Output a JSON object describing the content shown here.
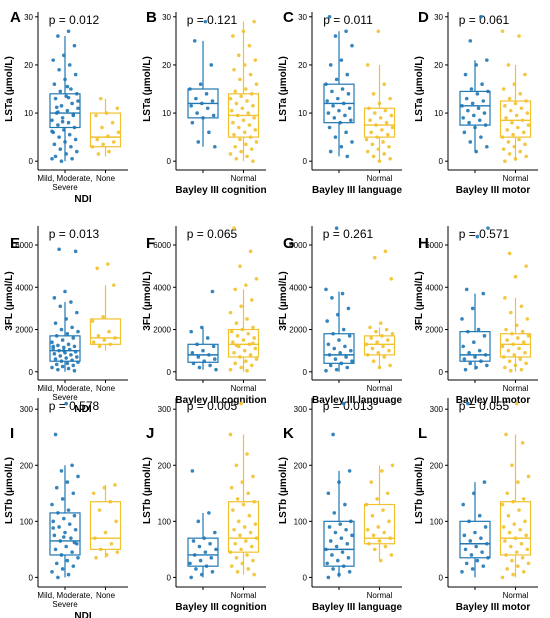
{
  "colors": {
    "impaired": "#1f77b4",
    "normal": "#f2c12e",
    "axis": "#000000"
  },
  "chart_data": [
    {
      "type": "box",
      "panel_label": "A",
      "ylabel": "LSTa (µmol/L)",
      "xlabel": "NDI",
      "p_text": "p = 0.012",
      "categories": [
        "Mild, Moderate,\nSevere",
        "None"
      ],
      "ylim": [
        -1,
        31
      ],
      "yticks": [
        0,
        10,
        20,
        30
      ],
      "boxes": [
        {
          "q1": 7,
          "median": 10,
          "q3": 14,
          "whisker_low": 0,
          "whisker_high": 26
        },
        {
          "q1": 3,
          "median": 5,
          "q3": 10,
          "whisker_low": 1,
          "whisker_high": 13
        }
      ],
      "points": [
        [
          0.5,
          27,
          26,
          24,
          22,
          21,
          20,
          19,
          18,
          17,
          16,
          15,
          14.5,
          14,
          13.5,
          13,
          12,
          11.5,
          11,
          10.5,
          10,
          9.5,
          9,
          8.5,
          8,
          7.5,
          7,
          6.5,
          6,
          5.5,
          5,
          4.5,
          4,
          3.5,
          3,
          2.5,
          2,
          1.5,
          1,
          0.5,
          0,
          12.5,
          15.5,
          11.2,
          9.8,
          8.2,
          6.2,
          13.2,
          10.2
        ],
        [
          13,
          11,
          10,
          9.5,
          8,
          7,
          6,
          5.2,
          4.5,
          4,
          3.5,
          3,
          2,
          1.5
        ]
      ]
    },
    {
      "type": "box",
      "panel_label": "B",
      "ylabel": "LSTa (µmol/L)",
      "xlabel": "Bayley III cognition",
      "p_text": "p = 0.121",
      "categories": [
        "",
        "Normal"
      ],
      "ylim": [
        -1,
        31
      ],
      "yticks": [
        0,
        10,
        20,
        30
      ],
      "boxes": [
        {
          "q1": 9,
          "median": 12,
          "q3": 15,
          "whisker_low": 3,
          "whisker_high": 25
        },
        {
          "q1": 5,
          "median": 9.5,
          "q3": 14,
          "whisker_low": 0,
          "whisker_high": 29
        }
      ],
      "points": [
        [
          29,
          25,
          20,
          16,
          15,
          14,
          13,
          12.5,
          12,
          11.5,
          11,
          10,
          9.5,
          9,
          8,
          6,
          4,
          3
        ],
        [
          29,
          27,
          26,
          24,
          22,
          21,
          20,
          19,
          18,
          17,
          16,
          15,
          14.5,
          14,
          13.5,
          13,
          12.5,
          12,
          11.5,
          11,
          10.5,
          10,
          9.5,
          9,
          8.5,
          8,
          7.5,
          7,
          6.5,
          6,
          5.5,
          5,
          4.5,
          4,
          3.5,
          3,
          2.5,
          2,
          1.5,
          1,
          0.5,
          0
        ]
      ]
    },
    {
      "type": "box",
      "panel_label": "C",
      "ylabel": "LSTa (µmol/L)",
      "xlabel": "Bayley III language",
      "p_text": "p = 0.011",
      "categories": [
        "",
        "Normal"
      ],
      "ylim": [
        -1,
        31
      ],
      "yticks": [
        0,
        10,
        20,
        30
      ],
      "boxes": [
        {
          "q1": 8,
          "median": 12,
          "q3": 16,
          "whisker_low": 1,
          "whisker_high": 27
        },
        {
          "q1": 5,
          "median": 7.5,
          "q3": 11,
          "whisker_low": 0,
          "whisker_high": 20
        }
      ],
      "points": [
        [
          30,
          27,
          26,
          24,
          21,
          20,
          18,
          17,
          16,
          15,
          14.5,
          14,
          13,
          12.5,
          12,
          11.5,
          11,
          10.5,
          10,
          9.5,
          9,
          8.5,
          8,
          7,
          6,
          5,
          4,
          3,
          2,
          1
        ],
        [
          27,
          20,
          16,
          14,
          13,
          12,
          11,
          10.5,
          10,
          9.5,
          9,
          8.5,
          8,
          7.5,
          7,
          6.5,
          6,
          5.5,
          5,
          4.5,
          4,
          3.5,
          3,
          2.5,
          2,
          1.5,
          1,
          0.5,
          0
        ]
      ]
    },
    {
      "type": "box",
      "panel_label": "D",
      "ylabel": "LSTa (µmol/L)",
      "xlabel": "Bayley III motor",
      "p_text": "p = 0.061",
      "categories": [
        "",
        "Normal"
      ],
      "ylim": [
        -1,
        31
      ],
      "yticks": [
        0,
        10,
        20,
        30
      ],
      "boxes": [
        {
          "q1": 7.5,
          "median": 11.5,
          "q3": 14.5,
          "whisker_low": 2,
          "whisker_high": 21
        },
        {
          "q1": 5,
          "median": 8.5,
          "q3": 12.5,
          "whisker_low": 0,
          "whisker_high": 20
        }
      ],
      "points": [
        [
          30,
          25,
          21,
          20,
          18,
          16,
          15,
          14.5,
          14,
          13,
          12.5,
          12,
          11.5,
          11,
          10.5,
          10,
          9.5,
          9,
          8.5,
          8,
          7.5,
          7,
          6,
          5,
          4,
          3,
          2
        ],
        [
          27,
          26,
          20,
          18,
          16,
          15,
          14,
          13,
          12.5,
          12,
          11.5,
          11,
          10.5,
          10,
          9.5,
          9,
          8.5,
          8,
          7.5,
          7,
          6.5,
          6,
          5.5,
          5,
          4.5,
          4,
          3.5,
          3,
          2.5,
          2,
          1.5,
          1,
          0.5,
          0
        ]
      ]
    },
    {
      "type": "box",
      "panel_label": "E",
      "ylabel": "3FL (µmol/L)",
      "xlabel": "NDI",
      "p_text": "p = 0.013",
      "categories": [
        "Mild, Moderate,\nSevere",
        "None"
      ],
      "ylim": [
        -200,
        6900
      ],
      "yticks": [
        0,
        2000,
        4000,
        6000
      ],
      "boxes": [
        {
          "q1": 500,
          "median": 1000,
          "q3": 1700,
          "whisker_low": 0,
          "whisker_high": 3300
        },
        {
          "q1": 1300,
          "median": 1600,
          "q3": 2500,
          "whisker_low": 1000,
          "whisker_high": 4100
        }
      ],
      "points": [
        [
          5800,
          5700,
          3800,
          3500,
          3300,
          3100,
          2800,
          2500,
          2300,
          2100,
          2000,
          1900,
          1800,
          1700,
          1600,
          1500,
          1400,
          1300,
          1250,
          1200,
          1150,
          1100,
          1050,
          1000,
          950,
          900,
          850,
          800,
          750,
          700,
          650,
          600,
          550,
          500,
          450,
          400,
          350,
          300,
          250,
          200,
          150,
          100,
          50,
          1000,
          1200
        ],
        [
          5100,
          4900,
          4100,
          2600,
          2400,
          1900,
          1700,
          1600,
          1500,
          1400,
          1300,
          1200
        ]
      ]
    },
    {
      "type": "box",
      "panel_label": "F",
      "ylabel": "3FL (µmol/L)",
      "xlabel": "Bayley III cognition",
      "p_text": "p = 0.065",
      "categories": [
        "",
        "Normal"
      ],
      "ylim": [
        -200,
        6900
      ],
      "yticks": [
        0,
        2000,
        4000,
        6000
      ],
      "boxes": [
        {
          "q1": 450,
          "median": 800,
          "q3": 1300,
          "whisker_low": 100,
          "whisker_high": 2100
        },
        {
          "q1": 700,
          "median": 1300,
          "q3": 2000,
          "whisker_low": 0,
          "whisker_high": 3900
        }
      ],
      "points": [
        [
          3800,
          2100,
          1900,
          1600,
          1300,
          1200,
          1000,
          900,
          800,
          700,
          600,
          500,
          400,
          300,
          200,
          100
        ],
        [
          6800,
          5700,
          5000,
          4400,
          4100,
          3900,
          3400,
          3100,
          2800,
          2500,
          2300,
          2100,
          2000,
          1900,
          1800,
          1700,
          1600,
          1500,
          1400,
          1300,
          1200,
          1100,
          1000,
          900,
          800,
          700,
          600,
          500,
          400,
          300,
          200,
          100,
          50,
          1250,
          1350
        ]
      ]
    },
    {
      "type": "box",
      "panel_label": "G",
      "ylabel": "3FL (µmol/L)",
      "xlabel": "Bayley III language",
      "p_text": "p = 0.261",
      "categories": [
        "",
        "Normal"
      ],
      "ylim": [
        -200,
        6900
      ],
      "yticks": [
        0,
        2000,
        4000,
        6000
      ],
      "boxes": [
        {
          "q1": 400,
          "median": 800,
          "q3": 1800,
          "whisker_low": 0,
          "whisker_high": 3800
        },
        {
          "q1": 800,
          "median": 1300,
          "q3": 1700,
          "whisker_low": 200,
          "whisker_high": 2100
        }
      ],
      "points": [
        [
          6800,
          3900,
          3700,
          3500,
          3000,
          2700,
          2400,
          2000,
          1800,
          1700,
          1500,
          1300,
          1200,
          1100,
          1000,
          900,
          800,
          700,
          600,
          500,
          400,
          300,
          200,
          100,
          50
        ],
        [
          5700,
          5400,
          4400,
          2300,
          2100,
          2000,
          1900,
          1800,
          1700,
          1600,
          1500,
          1400,
          1300,
          1200,
          1100,
          1000,
          900,
          800,
          700,
          500,
          300,
          200
        ]
      ]
    },
    {
      "type": "box",
      "panel_label": "H",
      "ylabel": "3FL (µmol/L)",
      "xlabel": "Bayley III motor",
      "p_text": "p = 0.571",
      "categories": [
        "",
        "Normal"
      ],
      "ylim": [
        -200,
        6900
      ],
      "yticks": [
        0,
        2000,
        4000,
        6000
      ],
      "boxes": [
        {
          "q1": 500,
          "median": 800,
          "q3": 1900,
          "whisker_low": 100,
          "whisker_high": 3700
        },
        {
          "q1": 700,
          "median": 1300,
          "q3": 1800,
          "whisker_low": 0,
          "whisker_high": 3500
        }
      ],
      "points": [
        [
          6800,
          6400,
          3900,
          3700,
          3000,
          2500,
          2000,
          1900,
          1700,
          1400,
          1200,
          1000,
          900,
          800,
          700,
          600,
          500,
          400,
          300,
          200,
          100
        ],
        [
          5600,
          5000,
          4500,
          3500,
          3100,
          2800,
          2500,
          2200,
          2000,
          1900,
          1800,
          1700,
          1600,
          1500,
          1400,
          1300,
          1200,
          1100,
          1000,
          900,
          800,
          700,
          600,
          500,
          400,
          300,
          200,
          100,
          50
        ]
      ]
    },
    {
      "type": "box",
      "panel_label": "I",
      "ylabel": "LSTb (µmol/L)",
      "xlabel": "NDI",
      "p_text": "p = 0.578",
      "categories": [
        "Mild, Moderate,\nSevere",
        "None"
      ],
      "ylim": [
        -10,
        320
      ],
      "yticks": [
        0,
        100,
        200,
        300
      ],
      "boxes": [
        {
          "q1": 40,
          "median": 65,
          "q3": 115,
          "whisker_low": 0,
          "whisker_high": 200
        },
        {
          "q1": 50,
          "median": 70,
          "q3": 135,
          "whisker_low": 35,
          "whisker_high": 165
        }
      ],
      "points": [
        [
          310,
          255,
          200,
          190,
          180,
          170,
          160,
          150,
          140,
          130,
          120,
          115,
          110,
          105,
          100,
          95,
          90,
          85,
          80,
          75,
          70,
          65,
          60,
          55,
          50,
          45,
          40,
          35,
          30,
          25,
          20,
          15,
          10,
          5,
          0,
          62,
          72,
          88
        ],
        [
          165,
          160,
          150,
          135,
          120,
          100,
          80,
          70,
          60,
          50,
          45,
          40,
          35
        ]
      ]
    },
    {
      "type": "box",
      "panel_label": "J",
      "ylabel": "LSTb (µmol/L)",
      "xlabel": "Bayley III cognition",
      "p_text": "p = 0.005",
      "categories": [
        "",
        "Normal"
      ],
      "ylim": [
        -10,
        320
      ],
      "yticks": [
        0,
        100,
        200,
        300
      ],
      "boxes": [
        {
          "q1": 20,
          "median": 40,
          "q3": 70,
          "whisker_low": 0,
          "whisker_high": 115
        },
        {
          "q1": 45,
          "median": 70,
          "q3": 135,
          "whisker_low": 5,
          "whisker_high": 255
        }
      ],
      "points": [
        [
          190,
          115,
          100,
          80,
          70,
          65,
          60,
          55,
          50,
          45,
          40,
          35,
          30,
          25,
          20,
          15,
          10,
          5,
          0
        ],
        [
          310,
          255,
          220,
          200,
          180,
          170,
          160,
          150,
          140,
          135,
          130,
          120,
          110,
          100,
          95,
          90,
          85,
          80,
          75,
          70,
          65,
          60,
          55,
          50,
          45,
          40,
          35,
          30,
          25,
          20,
          15,
          10,
          5
        ]
      ]
    },
    {
      "type": "box",
      "panel_label": "K",
      "ylabel": "LSTb (µmol/L)",
      "xlabel": "Bayley III language",
      "p_text": "p = 0.013",
      "categories": [
        "",
        "Normal"
      ],
      "ylim": [
        -10,
        320
      ],
      "yticks": [
        0,
        100,
        200,
        300
      ],
      "boxes": [
        {
          "q1": 20,
          "median": 50,
          "q3": 100,
          "whisker_low": 0,
          "whisker_high": 190
        },
        {
          "q1": 60,
          "median": 70,
          "q3": 130,
          "whisker_low": 30,
          "whisker_high": 200
        }
      ],
      "points": [
        [
          310,
          255,
          190,
          170,
          150,
          130,
          115,
          100,
          95,
          90,
          85,
          80,
          75,
          70,
          65,
          60,
          55,
          50,
          45,
          40,
          35,
          30,
          25,
          20,
          15,
          10,
          5,
          0
        ],
        [
          200,
          190,
          170,
          150,
          140,
          130,
          120,
          110,
          100,
          90,
          85,
          80,
          75,
          70,
          65,
          60,
          55,
          50,
          40,
          30
        ]
      ]
    },
    {
      "type": "box",
      "panel_label": "L",
      "ylabel": "LSTb (µmol/L)",
      "xlabel": "Bayley III motor",
      "p_text": "p = 0.055",
      "categories": [
        "",
        "Normal"
      ],
      "ylim": [
        -10,
        320
      ],
      "yticks": [
        0,
        100,
        200,
        300
      ],
      "boxes": [
        {
          "q1": 35,
          "median": 60,
          "q3": 100,
          "whisker_low": 0,
          "whisker_high": 170
        },
        {
          "q1": 40,
          "median": 70,
          "q3": 135,
          "whisker_low": 0,
          "whisker_high": 255
        }
      ],
      "points": [
        [
          310,
          170,
          150,
          130,
          110,
          100,
          90,
          80,
          75,
          70,
          65,
          60,
          55,
          50,
          45,
          40,
          35,
          30,
          25,
          20,
          15,
          10
        ],
        [
          310,
          255,
          240,
          200,
          180,
          170,
          150,
          140,
          135,
          130,
          120,
          110,
          100,
          95,
          90,
          85,
          80,
          75,
          70,
          65,
          60,
          55,
          50,
          45,
          40,
          35,
          30,
          25,
          20,
          15,
          10,
          5,
          0
        ]
      ]
    }
  ]
}
